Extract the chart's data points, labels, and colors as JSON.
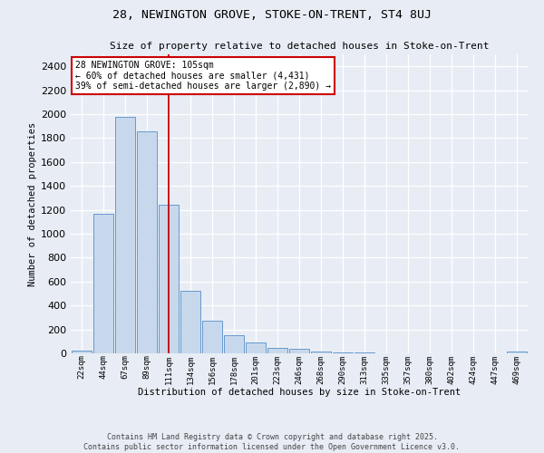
{
  "title1": "28, NEWINGTON GROVE, STOKE-ON-TRENT, ST4 8UJ",
  "title2": "Size of property relative to detached houses in Stoke-on-Trent",
  "xlabel": "Distribution of detached houses by size in Stoke-on-Trent",
  "ylabel": "Number of detached properties",
  "categories": [
    "22sqm",
    "44sqm",
    "67sqm",
    "89sqm",
    "111sqm",
    "134sqm",
    "156sqm",
    "178sqm",
    "201sqm",
    "223sqm",
    "246sqm",
    "268sqm",
    "290sqm",
    "313sqm",
    "335sqm",
    "357sqm",
    "380sqm",
    "402sqm",
    "424sqm",
    "447sqm",
    "469sqm"
  ],
  "values": [
    25,
    1170,
    1980,
    1855,
    1240,
    520,
    270,
    155,
    90,
    43,
    40,
    18,
    10,
    6,
    3,
    2,
    1,
    1,
    1,
    0,
    17
  ],
  "bar_color": "#c8d8ec",
  "bar_edge_color": "#6699cc",
  "background_color": "#e8edf5",
  "grid_color": "#ffffff",
  "vline_color": "#cc0000",
  "vline_pos": 4.0,
  "annotation_text": "28 NEWINGTON GROVE: 105sqm\n← 60% of detached houses are smaller (4,431)\n39% of semi-detached houses are larger (2,890) →",
  "annotation_box_color": "white",
  "annotation_box_edge": "#cc0000",
  "footer1": "Contains HM Land Registry data © Crown copyright and database right 2025.",
  "footer2": "Contains public sector information licensed under the Open Government Licence v3.0.",
  "ylim": [
    0,
    2500
  ],
  "yticks": [
    0,
    200,
    400,
    600,
    800,
    1000,
    1200,
    1400,
    1600,
    1800,
    2000,
    2200,
    2400
  ]
}
